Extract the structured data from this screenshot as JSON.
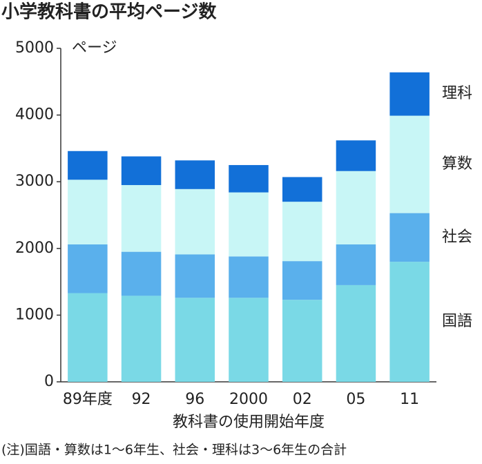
{
  "chart_data": {
    "type": "stacked_bar",
    "title": "小学教科書の平均ページ数",
    "y_label": "ページ",
    "x_label": "教科書の使用開始年度",
    "note": "(注)国語・算数は1～6年生、社会・理科は3～6年生の合計",
    "categories": [
      "89年度",
      "92",
      "96",
      "2000",
      "02",
      "05",
      "11"
    ],
    "series": [
      {
        "name": "国語",
        "color": "#7ad9e6",
        "values": [
          1330,
          1290,
          1260,
          1260,
          1230,
          1450,
          1800
        ]
      },
      {
        "name": "社会",
        "color": "#5ab0ec",
        "values": [
          730,
          660,
          650,
          620,
          580,
          610,
          730
        ]
      },
      {
        "name": "算数",
        "color": "#c8f6f6",
        "values": [
          970,
          1000,
          980,
          960,
          890,
          1100,
          1460
        ]
      },
      {
        "name": "理科",
        "color": "#1270d8",
        "values": [
          430,
          430,
          430,
          410,
          370,
          460,
          650
        ]
      }
    ],
    "ylim": [
      0,
      5000
    ],
    "yticks": [
      0,
      1000,
      2000,
      3000,
      4000,
      5000
    ]
  }
}
